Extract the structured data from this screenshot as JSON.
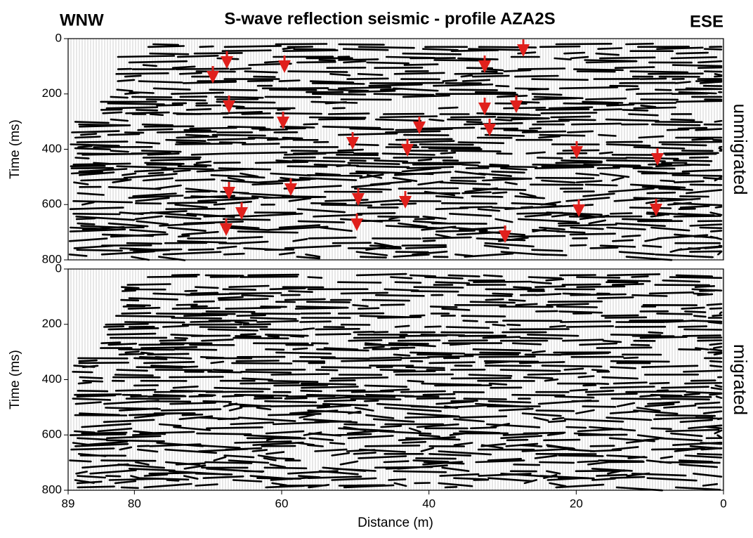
{
  "chart_data": {
    "type": "seismic",
    "title": "S-wave reflection seismic - profile AZA2S",
    "left_label": "WNW",
    "right_label": "ESE",
    "x_label": "Distance (m)",
    "xlim": [
      89,
      0
    ],
    "xticks": [
      89,
      80,
      60,
      40,
      20,
      0
    ],
    "panels": [
      {
        "name": "unmigrated",
        "y_label": "Time (ms)",
        "ylim": [
          0,
          800
        ],
        "yticks": [
          0,
          200,
          400,
          600,
          800
        ]
      },
      {
        "name": "migrated",
        "y_label": "Time (ms)",
        "ylim": [
          0,
          800
        ],
        "yticks": [
          0,
          200,
          400,
          600,
          800
        ]
      }
    ]
  }
}
